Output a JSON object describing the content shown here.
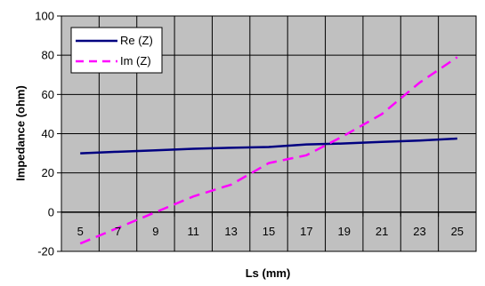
{
  "chart_data": {
    "type": "line",
    "xlabel": "Ls (mm)",
    "ylabel": "Impedance (ohm)",
    "ylim": [
      -20,
      100
    ],
    "yticks": [
      -20,
      0,
      20,
      40,
      60,
      80,
      100
    ],
    "categories": [
      "5",
      "7",
      "9",
      "11",
      "13",
      "15",
      "17",
      "19",
      "21",
      "23",
      "25"
    ],
    "grid": true,
    "legend_position": "top-left",
    "plot_background": "#c0c0c0",
    "series": [
      {
        "name": "Re (Z)",
        "color": "#000080",
        "dash": "solid",
        "x": [
          5,
          7,
          9,
          11,
          13,
          15,
          17,
          19,
          21,
          23,
          25
        ],
        "values": [
          30,
          30.8,
          31.5,
          32.3,
          32.8,
          33.2,
          34.5,
          35,
          35.8,
          36.5,
          37.5
        ]
      },
      {
        "name": "Im (Z)",
        "color": "#ff00ff",
        "dash": "dashed",
        "x": [
          5,
          7,
          9,
          11,
          13,
          15,
          17,
          19,
          21,
          23,
          25
        ],
        "values": [
          -16,
          -8,
          0,
          8,
          14,
          25,
          29,
          39,
          50,
          66,
          79
        ]
      }
    ]
  }
}
